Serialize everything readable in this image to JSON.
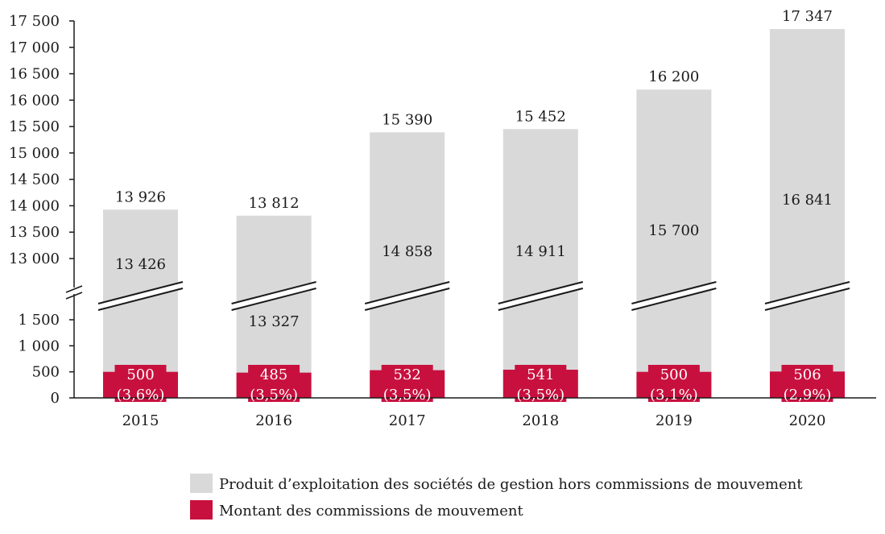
{
  "chart_data": {
    "type": "bar",
    "stacked": true,
    "broken_y_axis": true,
    "categories": [
      "2015",
      "2016",
      "2017",
      "2018",
      "2019",
      "2020"
    ],
    "series": [
      {
        "name": "Montant des commissions de mouvement",
        "color": "#c8103e",
        "values": [
          500,
          485,
          532,
          541,
          500,
          506
        ],
        "labels": [
          "500",
          "485",
          "532",
          "541",
          "500",
          "506"
        ],
        "pct_labels": [
          "(3,6%)",
          "(3,5%)",
          "(3,5%)",
          "(3,5%)",
          "(3,1%)",
          "(2,9%)"
        ]
      },
      {
        "name": "Produit d’exploitation des sociétés de gestion hors commissions de mouvement",
        "color": "#d9d9da",
        "values": [
          13426,
          13327,
          14858,
          14911,
          15700,
          16841
        ],
        "labels": [
          "13 426",
          "13 327",
          "14 858",
          "14 911",
          "15 700",
          "16 841"
        ]
      }
    ],
    "totals": [
      13926,
      13812,
      15390,
      15452,
      16200,
      17347
    ],
    "total_labels": [
      "13 926",
      "13 812",
      "15 390",
      "15 452",
      "16 200",
      "17 347"
    ],
    "y_ticks_lower": [
      "0",
      "500",
      "1 000",
      "1 500"
    ],
    "y_ticks_upper": [
      "13 000",
      "13 500",
      "14 000",
      "14 500",
      "15 000",
      "15 500",
      "16 000",
      "16 500",
      "17 000",
      "17 500"
    ],
    "ylim_lower": [
      0,
      1500
    ],
    "ylim_upper": [
      13000,
      17500
    ],
    "grid": false,
    "legend_position": "bottom-right"
  },
  "legend": {
    "items": [
      {
        "label": "Produit d’exploitation des sociétés de gestion hors commissions de mouvement",
        "color": "#d9d9da"
      },
      {
        "label": "Montant des commissions de mouvement",
        "color": "#c8103e"
      }
    ]
  }
}
